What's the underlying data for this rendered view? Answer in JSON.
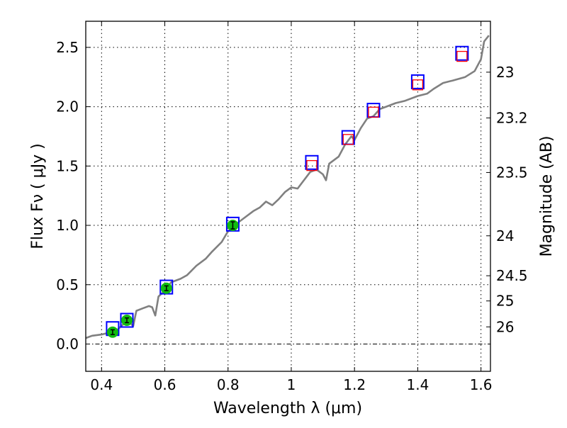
{
  "chart_data": {
    "type": "scatter",
    "title": "",
    "xlabel": "Wavelength  λ (μm)",
    "ylabel": "Flux  Fν  ( μJy )",
    "ylabel_right": "Magnitude (AB)",
    "xlim": [
      0.35,
      1.63
    ],
    "ylim": [
      -0.23,
      2.72
    ],
    "grid": true,
    "xticks": [
      0.4,
      0.6,
      0.8,
      1.0,
      1.2,
      1.4,
      1.6
    ],
    "xtick_labels": [
      "0.4",
      "0.6",
      "0.8",
      "1",
      "1.2",
      "1.4",
      "1.6"
    ],
    "yticks": [
      0.0,
      0.5,
      1.0,
      1.5,
      2.0,
      2.5
    ],
    "ytick_labels": [
      "0.0",
      "0.5",
      "1.0",
      "1.5",
      "2.0",
      "2.5"
    ],
    "right_ticks_mag": [
      23,
      23.2,
      23.5,
      24,
      24.5,
      25,
      26
    ],
    "right_tick_labels": [
      "23",
      "23.2",
      "23.5",
      "24",
      "24.5",
      "25",
      "26"
    ],
    "colors": {
      "spectrum": "#808080",
      "model": "#0000ff",
      "observed_ir": "#ff0000",
      "observed_opt": "#11bb11",
      "zero": "#000000"
    },
    "series": [
      {
        "name": "spectrum",
        "kind": "line",
        "x": [
          0.35,
          0.37,
          0.4,
          0.43,
          0.45,
          0.47,
          0.49,
          0.5,
          0.51,
          0.53,
          0.55,
          0.56,
          0.57,
          0.58,
          0.6,
          0.62,
          0.65,
          0.67,
          0.7,
          0.73,
          0.75,
          0.78,
          0.8,
          0.82,
          0.85,
          0.88,
          0.9,
          0.92,
          0.94,
          0.96,
          0.98,
          1.0,
          1.02,
          1.04,
          1.06,
          1.08,
          1.1,
          1.11,
          1.12,
          1.15,
          1.17,
          1.19,
          1.2,
          1.22,
          1.24,
          1.26,
          1.28,
          1.3,
          1.33,
          1.36,
          1.4,
          1.43,
          1.45,
          1.48,
          1.51,
          1.55,
          1.58,
          1.6,
          1.61,
          1.625
        ],
        "y": [
          0.05,
          0.07,
          0.08,
          0.1,
          0.12,
          0.17,
          0.18,
          0.15,
          0.28,
          0.3,
          0.32,
          0.31,
          0.24,
          0.4,
          0.45,
          0.52,
          0.55,
          0.58,
          0.66,
          0.72,
          0.78,
          0.86,
          0.95,
          1.0,
          1.06,
          1.12,
          1.15,
          1.2,
          1.17,
          1.22,
          1.28,
          1.32,
          1.31,
          1.38,
          1.45,
          1.47,
          1.43,
          1.38,
          1.52,
          1.58,
          1.68,
          1.75,
          1.72,
          1.82,
          1.9,
          1.92,
          1.98,
          2.0,
          2.03,
          2.05,
          2.09,
          2.11,
          2.15,
          2.2,
          2.22,
          2.25,
          2.3,
          2.4,
          2.55,
          2.6
        ]
      },
      {
        "name": "model-photometry",
        "kind": "open-square",
        "x": [
          0.435,
          0.48,
          0.605,
          0.815,
          1.065,
          1.18,
          1.26,
          1.4,
          1.54
        ],
        "y": [
          0.13,
          0.2,
          0.48,
          1.01,
          1.53,
          1.74,
          1.97,
          2.21,
          2.45
        ]
      },
      {
        "name": "observed-ir",
        "kind": "open-square-small",
        "x": [
          1.065,
          1.18,
          1.26,
          1.4,
          1.54
        ],
        "y": [
          1.51,
          1.73,
          1.96,
          2.19,
          2.43
        ]
      },
      {
        "name": "observed-optical",
        "kind": "circle-errorbar",
        "x": [
          0.435,
          0.48,
          0.605,
          0.815
        ],
        "y": [
          0.1,
          0.2,
          0.47,
          1.0
        ],
        "err": [
          0.02,
          0.02,
          0.02,
          0.03
        ]
      }
    ]
  }
}
